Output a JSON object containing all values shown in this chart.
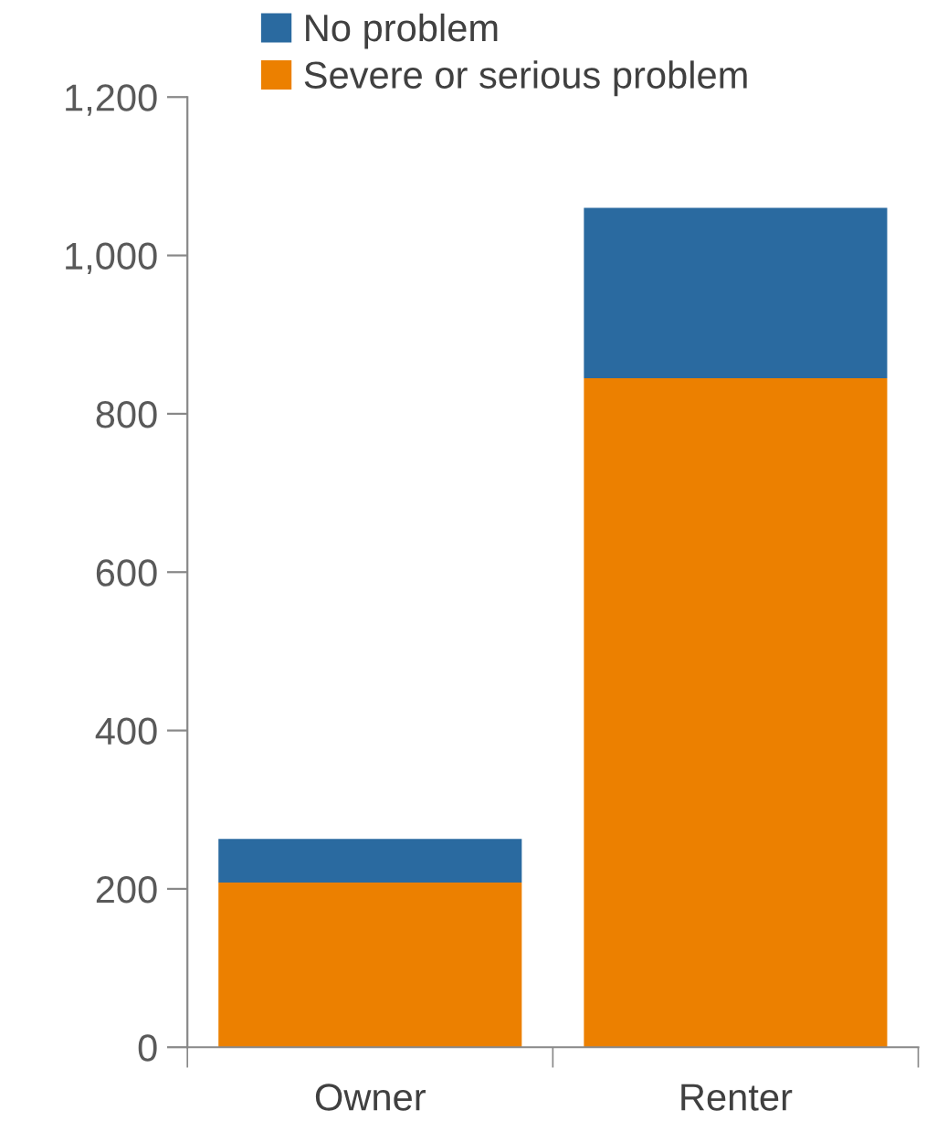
{
  "chart_data": {
    "type": "bar",
    "stacked": true,
    "categories": [
      "Owner",
      "Renter"
    ],
    "series": [
      {
        "name": "Severe or serious problem",
        "color": "#ec8000",
        "values": [
          208,
          845
        ]
      },
      {
        "name": "No problem",
        "color": "#2a6aa0",
        "values": [
          55,
          215
        ]
      }
    ],
    "ylim": [
      0,
      1200
    ],
    "yticks": [
      0,
      {
        "value": 200,
        "label": "200"
      },
      {
        "value": 400,
        "label": "400"
      },
      {
        "value": 600,
        "label": "600"
      },
      {
        "value": 800,
        "label": "800"
      },
      {
        "value": 1000,
        "label": "1,000"
      },
      {
        "value": 1200,
        "label": "1,200"
      }
    ],
    "grid": false,
    "legend": "top"
  }
}
